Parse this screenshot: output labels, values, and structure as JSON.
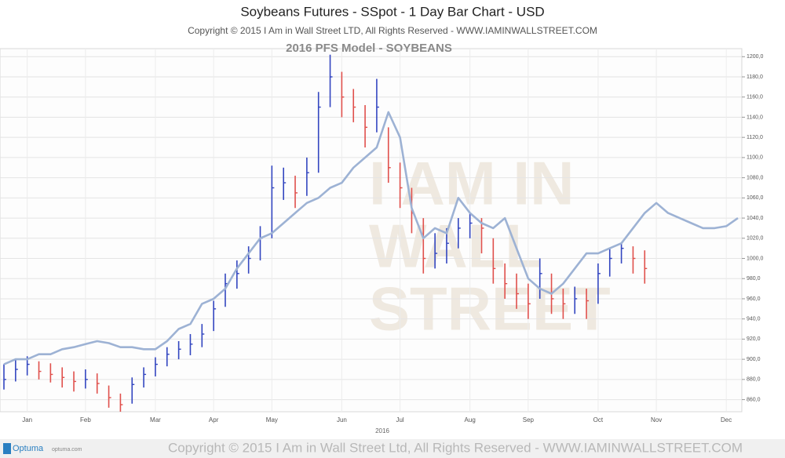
{
  "chart_data": {
    "type": "ohlc",
    "title": "Soybeans Futures - SSpot - 1 Day Bar Chart - USD",
    "subtitle": "Copyright © 2015 I Am in Wall Street LTD, All Rights Reserved  -  WWW.IAMINWALLSTREET.COM",
    "model_label": "2016 PFS Model - SOYBEANS",
    "year_label": "2016",
    "watermark": [
      "I AM IN",
      "WALL",
      "STREET"
    ],
    "footer": "Copyright © 2015 I Am in Wall Street Ltd, All Rights Reserved - WWW.IAMINWALLSTREET.COM",
    "brand": "Optuma",
    "brand_url": "optuma.com",
    "categories": [
      null,
      null,
      "Jan",
      null,
      null,
      null,
      null,
      "Feb",
      null,
      null,
      null,
      null,
      null,
      "Mar",
      null,
      null,
      null,
      null,
      "Apr",
      null,
      null,
      null,
      null,
      "May",
      null,
      null,
      null,
      null,
      null,
      "Jun",
      null,
      null,
      null,
      null,
      "Jul",
      null,
      null,
      null,
      null,
      null,
      "Aug",
      null,
      null,
      null,
      null,
      "Sep",
      null,
      null,
      null,
      null,
      null,
      "Oct",
      null,
      null,
      null,
      null,
      "Nov",
      null,
      null,
      null,
      null,
      null,
      "Dec",
      null
    ],
    "price": {
      "up_color": "#3346c0",
      "down_color": "#e0504c",
      "high": [
        895,
        900,
        903,
        898,
        896,
        892,
        888,
        890,
        886,
        874,
        866,
        882,
        892,
        902,
        912,
        918,
        925,
        935,
        958,
        985,
        998,
        1012,
        1032,
        1092,
        1090,
        1082,
        1100,
        1165,
        1202,
        1185,
        1168,
        1152,
        1178,
        1130,
        1095,
        1070,
        1040,
        1025,
        1030,
        1040,
        1045,
        1040,
        1020,
        995,
        985,
        975,
        1000,
        985,
        970,
        972,
        970,
        995,
        1010,
        1015,
        1012,
        1008,
        null,
        null,
        null,
        null,
        null,
        null,
        null,
        null
      ],
      "low": [
        870,
        878,
        884,
        880,
        877,
        872,
        868,
        871,
        866,
        852,
        848,
        856,
        872,
        883,
        893,
        900,
        904,
        912,
        928,
        952,
        970,
        985,
        998,
        1020,
        1058,
        1050,
        1062,
        1085,
        1150,
        1140,
        1135,
        1110,
        1125,
        1075,
        1050,
        1025,
        985,
        990,
        995,
        1010,
        1020,
        1005,
        975,
        960,
        950,
        940,
        960,
        945,
        940,
        945,
        940,
        955,
        982,
        995,
        985,
        975,
        null,
        null,
        null,
        null,
        null,
        null,
        null,
        null
      ],
      "close": [
        880,
        890,
        895,
        888,
        885,
        882,
        878,
        880,
        876,
        862,
        855,
        875,
        885,
        895,
        905,
        910,
        915,
        925,
        950,
        975,
        985,
        1000,
        1020,
        1070,
        1075,
        1065,
        1085,
        1150,
        1180,
        1160,
        1150,
        1130,
        1150,
        1090,
        1070,
        1045,
        1000,
        1005,
        1015,
        1030,
        1035,
        1030,
        990,
        975,
        965,
        955,
        985,
        960,
        955,
        960,
        958,
        985,
        1000,
        1010,
        1000,
        990,
        null,
        null,
        null,
        null,
        null,
        null,
        null,
        null
      ]
    },
    "model": {
      "color": "#9db2d4",
      "values": [
        895,
        900,
        900,
        905,
        905,
        910,
        912,
        915,
        918,
        916,
        912,
        912,
        910,
        910,
        918,
        930,
        935,
        955,
        960,
        970,
        990,
        1005,
        1020,
        1025,
        1035,
        1045,
        1055,
        1060,
        1070,
        1075,
        1090,
        1100,
        1110,
        1145,
        1120,
        1050,
        1020,
        1030,
        1025,
        1060,
        1045,
        1035,
        1030,
        1040,
        1010,
        980,
        970,
        965,
        975,
        990,
        1005,
        1005,
        1010,
        1015,
        1030,
        1045,
        1055,
        1045,
        1040,
        1035,
        1030,
        1030,
        1032,
        1040
      ]
    },
    "ylim": [
      848,
      1208
    ],
    "yticks": [
      {
        "value": 860,
        "label": "860,0"
      },
      {
        "value": 880,
        "label": "880,0"
      },
      {
        "value": 900,
        "label": "900,0"
      },
      {
        "value": 920,
        "label": "920,0"
      },
      {
        "value": 940,
        "label": "940,0"
      },
      {
        "value": 960,
        "label": "960,0"
      },
      {
        "value": 980,
        "label": "980,0"
      },
      {
        "value": 1000,
        "label": "1000,0"
      },
      {
        "value": 1020,
        "label": "1020,0"
      },
      {
        "value": 1040,
        "label": "1040,0"
      },
      {
        "value": 1060,
        "label": "1060,0"
      },
      {
        "value": 1080,
        "label": "1080,0"
      },
      {
        "value": 1100,
        "label": "1100,0"
      },
      {
        "value": 1120,
        "label": "1120,0"
      },
      {
        "value": 1140,
        "label": "1140,0"
      },
      {
        "value": 1160,
        "label": "1160,0"
      },
      {
        "value": 1180,
        "label": "1180,0"
      },
      {
        "value": 1200,
        "label": "1200,0"
      }
    ],
    "grid": true
  }
}
